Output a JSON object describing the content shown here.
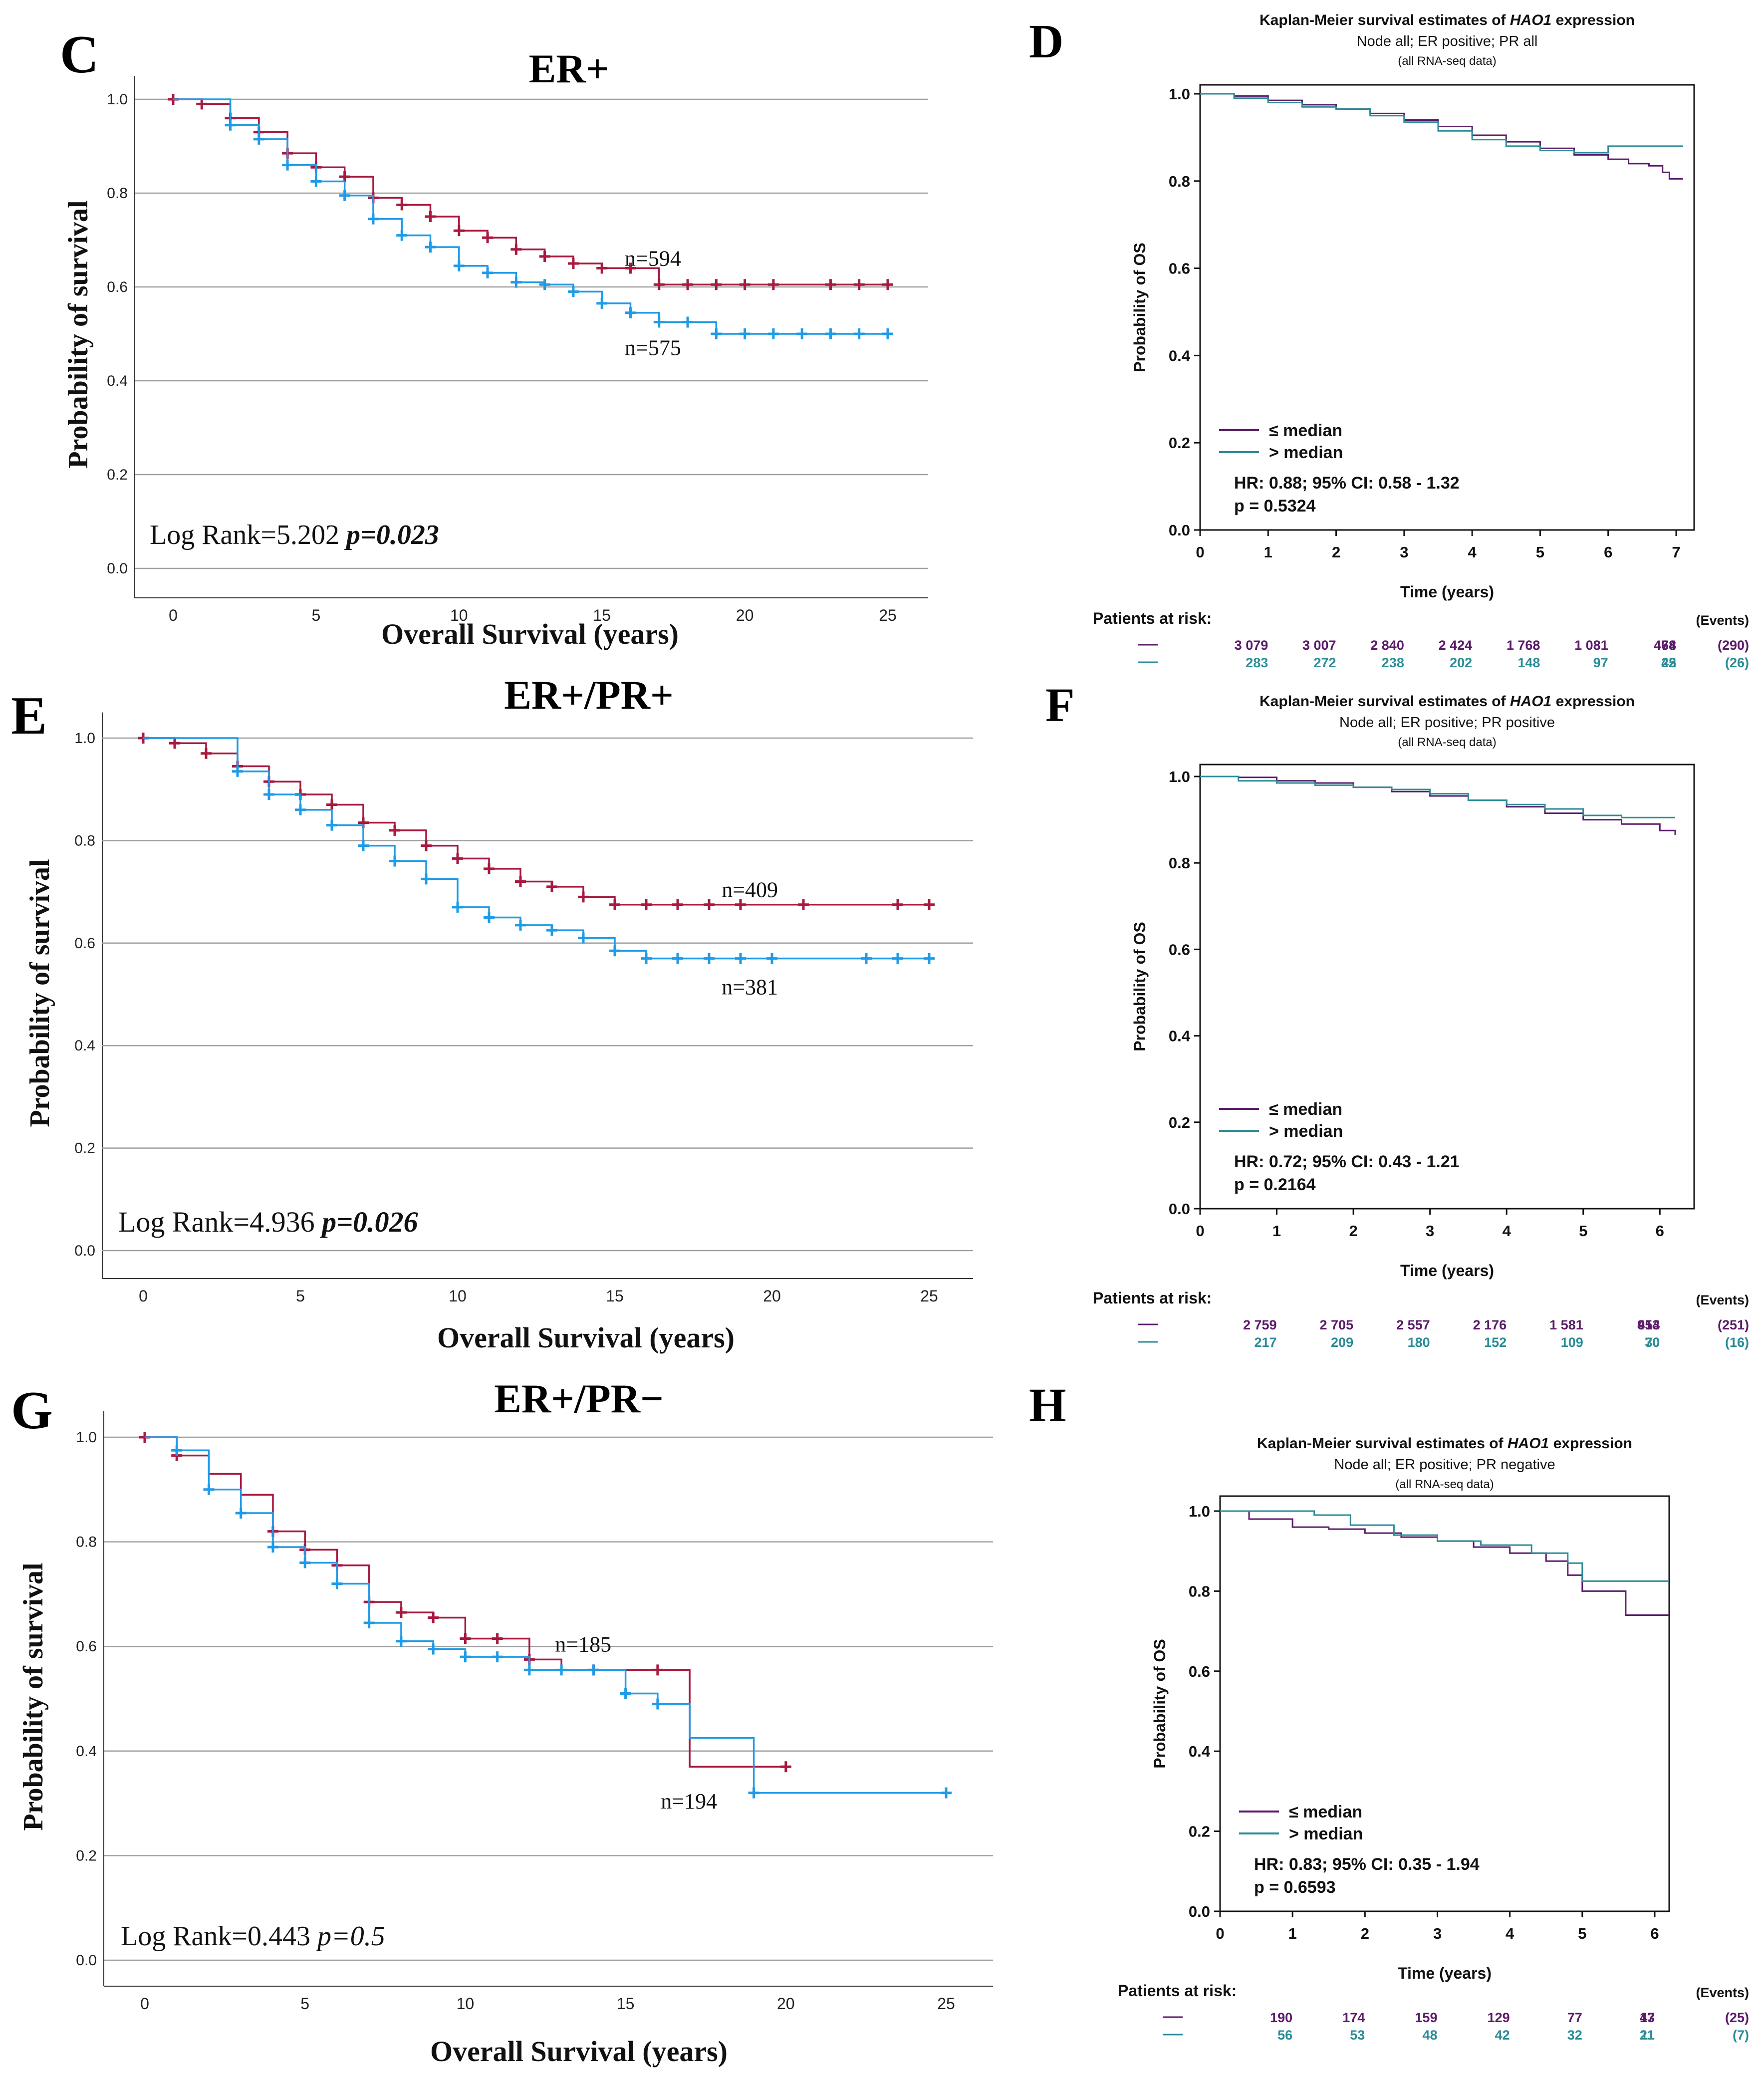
{
  "figure_title": "",
  "panels_text": {
    "C": {
      "letter": "C",
      "title": "ER+",
      "xlabel": "Overall Survival (years)",
      "ylabel": "Probability of survival",
      "logrank": "Log Rank=5.202 ",
      "pval": "p=0.023",
      "n_red": "n=594",
      "n_blue": "n=575"
    },
    "E": {
      "letter": "E",
      "title": "ER+/PR+",
      "xlabel": "Overall Survival (years)",
      "ylabel": "Probability of survival",
      "logrank": "Log Rank=4.936 ",
      "pval": "p=0.026",
      "n_red": "n=409",
      "n_blue": "n=381"
    },
    "G": {
      "letter": "G",
      "title": "ER+/PR−",
      "xlabel": "Overall Survival (years)",
      "ylabel": "Probability of survival",
      "logrank": "Log Rank=0.443 ",
      "pval": "p=0.5",
      "n_red": "n=185",
      "n_blue": "n=194"
    },
    "D": {
      "letter": "D",
      "title_pre": "Kaplan-Meier survival estimates of ",
      "title_gene": "HAO1",
      "title_post": " expression",
      "subtitle": "Node all; ER positive; PR all",
      "subtitle2": "(all RNA-seq data)",
      "xlabel": "Time (years)",
      "ylabel": "Probability of OS",
      "legend_low": "≤ median",
      "legend_high": "> median",
      "hr": "HR: 0.88; 95% CI: 0.58 - 1.32",
      "p": "p = 0.5324",
      "risk_label": "Patients at risk:",
      "events_label": "(Events)",
      "risk_low": [
        "3 079",
        "3 007",
        "2 840",
        "2 424",
        "1 768",
        "1 081",
        "474",
        "68",
        "(290)"
      ],
      "risk_high": [
        "283",
        "272",
        "238",
        "202",
        "148",
        "97",
        "45",
        "22",
        "(26)"
      ]
    },
    "F": {
      "letter": "F",
      "title_pre": "Kaplan-Meier survival estimates of ",
      "title_gene": "HAO1",
      "title_post": " expression",
      "subtitle": "Node all; ER positive; PR positive",
      "subtitle2": "(all RNA-seq data)",
      "xlabel": "Time (years)",
      "ylabel": "Probability of OS",
      "legend_low": "≤ median",
      "legend_high": "> median",
      "hr": "HR: 0.72; 95% CI: 0.43 - 1.21",
      "p": "p = 0.2164",
      "risk_label": "Patients at risk:",
      "events_label": "(Events)",
      "risk_low": [
        "2 759",
        "2 705",
        "2 557",
        "2 176",
        "1 581",
        "954",
        "413",
        "(251)"
      ],
      "risk_high": [
        "217",
        "209",
        "180",
        "152",
        "109",
        "70",
        "30",
        "(16)"
      ]
    },
    "H": {
      "letter": "H",
      "title_pre": "Kaplan-Meier survival estimates of ",
      "title_gene": "HAO1",
      "title_post": " expression",
      "subtitle": "Node all; ER positive; PR negative",
      "subtitle2": "(all RNA-seq data)",
      "xlabel": "Time (years)",
      "ylabel": "Probability of OS",
      "legend_low": "≤ median",
      "legend_high": "> median",
      "hr": "HR: 0.83; 95% CI: 0.35 - 1.94",
      "p": "p = 0.6593",
      "risk_label": "Patients at risk:",
      "events_label": "(Events)",
      "risk_low": [
        "190",
        "174",
        "159",
        "129",
        "77",
        "43",
        "17",
        "(25)"
      ],
      "risk_high": [
        "56",
        "53",
        "48",
        "42",
        "32",
        "21",
        "11",
        "(7)"
      ]
    }
  },
  "colors": {
    "red": "#A8183F",
    "blue": "#1E9BE8",
    "purple": "#5C1A6B",
    "teal": "#2A8C97",
    "grid": "#A0A0A0"
  },
  "chart_data": [
    {
      "id": "C",
      "type": "line",
      "title": "ER+",
      "xlabel": "Overall Survival (years)",
      "ylabel": "Probability of survival",
      "xlim": [
        0,
        25
      ],
      "ylim": [
        0,
        1
      ],
      "xticks": [
        0,
        5,
        10,
        15,
        20,
        25
      ],
      "yticks": [
        0,
        0.2,
        0.4,
        0.6,
        0.8,
        1.0
      ],
      "series": [
        {
          "name": "n=594",
          "color": "red",
          "x": [
            0,
            1,
            2,
            3,
            4,
            5,
            6,
            7,
            8,
            9,
            10,
            11,
            12,
            13,
            14,
            15,
            16,
            17,
            25
          ],
          "y": [
            1.0,
            0.99,
            0.96,
            0.93,
            0.885,
            0.855,
            0.835,
            0.79,
            0.775,
            0.75,
            0.72,
            0.705,
            0.68,
            0.665,
            0.65,
            0.64,
            0.64,
            0.605,
            0.605
          ],
          "censor": [
            0,
            1,
            2,
            3,
            4,
            5,
            6,
            7,
            8,
            9,
            10,
            11,
            12,
            13,
            14,
            15,
            16,
            17,
            18,
            19,
            20,
            21,
            23,
            24,
            25
          ]
        },
        {
          "name": "n=575",
          "color": "blue",
          "x": [
            0,
            2,
            3,
            4,
            5,
            6,
            7,
            8,
            9,
            10,
            11,
            12,
            13,
            14,
            15,
            16,
            17,
            19,
            25
          ],
          "y": [
            1.0,
            0.945,
            0.915,
            0.86,
            0.825,
            0.795,
            0.745,
            0.71,
            0.685,
            0.645,
            0.63,
            0.61,
            0.605,
            0.59,
            0.565,
            0.545,
            0.525,
            0.5,
            0.5
          ],
          "censor": [
            2,
            3,
            4,
            5,
            6,
            7,
            8,
            9,
            10,
            11,
            12,
            13,
            14,
            15,
            16,
            17,
            18,
            19,
            20,
            21,
            22,
            23,
            24,
            25
          ]
        }
      ]
    },
    {
      "id": "E",
      "type": "line",
      "title": "ER+/PR+",
      "xlabel": "Overall Survival (years)",
      "ylabel": "Probability of survival",
      "xlim": [
        0,
        25
      ],
      "ylim": [
        0,
        1
      ],
      "xticks": [
        0,
        5,
        10,
        15,
        20,
        25
      ],
      "yticks": [
        0,
        0.2,
        0.4,
        0.6,
        0.8,
        1.0
      ],
      "series": [
        {
          "name": "n=409",
          "color": "red",
          "x": [
            0,
            1,
            2,
            3,
            4,
            5,
            6,
            7,
            8,
            9,
            10,
            11,
            12,
            13,
            14,
            15,
            25
          ],
          "y": [
            1.0,
            0.99,
            0.97,
            0.945,
            0.915,
            0.89,
            0.87,
            0.835,
            0.82,
            0.79,
            0.765,
            0.745,
            0.72,
            0.71,
            0.69,
            0.675,
            0.675
          ],
          "censor": [
            0,
            1,
            2,
            3,
            4,
            5,
            6,
            7,
            8,
            9,
            10,
            11,
            12,
            13,
            14,
            15,
            16,
            17,
            18,
            19,
            21,
            24,
            25
          ]
        },
        {
          "name": "n=381",
          "color": "blue",
          "x": [
            0,
            3,
            4,
            5,
            6,
            7,
            8,
            9,
            10,
            11,
            12,
            13,
            14,
            15,
            16,
            25
          ],
          "y": [
            1.0,
            0.935,
            0.89,
            0.86,
            0.83,
            0.79,
            0.76,
            0.725,
            0.67,
            0.65,
            0.635,
            0.625,
            0.61,
            0.585,
            0.57,
            0.57
          ],
          "censor": [
            3,
            4,
            5,
            6,
            7,
            8,
            9,
            10,
            11,
            12,
            13,
            14,
            15,
            16,
            17,
            18,
            19,
            20,
            23,
            24,
            25
          ]
        }
      ]
    },
    {
      "id": "G",
      "type": "line",
      "title": "ER+/PR−",
      "xlabel": "Overall Survival (years)",
      "ylabel": "Probability of survival",
      "xlim": [
        0,
        25
      ],
      "ylim": [
        0,
        1
      ],
      "xticks": [
        0,
        5,
        10,
        15,
        20,
        25
      ],
      "yticks": [
        0,
        0.2,
        0.4,
        0.6,
        0.8,
        1.0
      ],
      "series": [
        {
          "name": "n=185",
          "color": "red",
          "x": [
            0,
            1,
            2,
            3,
            4,
            5,
            6,
            7,
            8,
            9,
            10,
            12,
            13,
            17,
            20
          ],
          "y": [
            1.0,
            0.965,
            0.93,
            0.89,
            0.82,
            0.785,
            0.755,
            0.685,
            0.665,
            0.655,
            0.615,
            0.575,
            0.555,
            0.37,
            0.37
          ],
          "censor": [
            0,
            1,
            4,
            5,
            6,
            7,
            8,
            9,
            10,
            11,
            12,
            14,
            16,
            20
          ]
        },
        {
          "name": "n=194",
          "color": "blue",
          "x": [
            0,
            1,
            2,
            3,
            4,
            5,
            6,
            7,
            8,
            9,
            10,
            12,
            15,
            16,
            17,
            19,
            25
          ],
          "y": [
            1.0,
            0.975,
            0.9,
            0.855,
            0.79,
            0.76,
            0.72,
            0.645,
            0.61,
            0.595,
            0.58,
            0.555,
            0.51,
            0.49,
            0.425,
            0.32,
            0.32
          ],
          "censor": [
            1,
            2,
            3,
            4,
            5,
            6,
            7,
            8,
            9,
            10,
            11,
            12,
            13,
            14,
            15,
            16,
            19,
            25
          ]
        }
      ]
    },
    {
      "id": "D",
      "type": "line",
      "title": "Kaplan-Meier survival estimates of HAO1 expression",
      "xlabel": "Time (years)",
      "ylabel": "Probability of OS",
      "xlim": [
        0,
        7
      ],
      "ylim": [
        0,
        1
      ],
      "xticks": [
        0,
        1,
        2,
        3,
        4,
        5,
        6,
        7
      ],
      "yticks": [
        0,
        0.2,
        0.4,
        0.6,
        0.8,
        1.0
      ],
      "series": [
        {
          "name": "≤ median",
          "color": "purple",
          "x": [
            0,
            0.5,
            1,
            1.5,
            2,
            2.5,
            3,
            3.5,
            4,
            4.5,
            5,
            5.5,
            6,
            6.3,
            6.6,
            6.8,
            6.9,
            7.1
          ],
          "y": [
            1.0,
            0.995,
            0.985,
            0.975,
            0.965,
            0.955,
            0.94,
            0.925,
            0.905,
            0.89,
            0.875,
            0.86,
            0.85,
            0.84,
            0.835,
            0.82,
            0.805,
            0.805
          ]
        },
        {
          "name": "> median",
          "color": "teal",
          "x": [
            0,
            0.5,
            1,
            1.5,
            2,
            2.5,
            3,
            3.5,
            4,
            4.5,
            5,
            5.5,
            6,
            6.5,
            7.1
          ],
          "y": [
            1.0,
            0.99,
            0.98,
            0.97,
            0.965,
            0.95,
            0.935,
            0.915,
            0.895,
            0.88,
            0.87,
            0.865,
            0.88,
            0.88,
            0.88
          ]
        }
      ],
      "hr": "HR: 0.88; 95% CI: 0.58 - 1.32",
      "p": "p = 0.5324"
    },
    {
      "id": "F",
      "type": "line",
      "title": "Kaplan-Meier survival estimates of HAO1 expression",
      "xlabel": "Time (years)",
      "ylabel": "Probability of OS",
      "xlim": [
        0,
        6.2
      ],
      "ylim": [
        0,
        1
      ],
      "xticks": [
        0,
        1,
        2,
        3,
        4,
        5,
        6
      ],
      "yticks": [
        0,
        0.2,
        0.4,
        0.6,
        0.8,
        1.0
      ],
      "series": [
        {
          "name": "≤ median",
          "color": "purple",
          "x": [
            0,
            0.5,
            1,
            1.5,
            2,
            2.5,
            3,
            3.5,
            4,
            4.5,
            5,
            5.5,
            6,
            6.2
          ],
          "y": [
            1.0,
            0.998,
            0.99,
            0.985,
            0.975,
            0.965,
            0.955,
            0.945,
            0.93,
            0.915,
            0.9,
            0.89,
            0.875,
            0.865
          ]
        },
        {
          "name": "> median",
          "color": "teal",
          "x": [
            0,
            0.5,
            1,
            1.5,
            2,
            2.5,
            3,
            3.5,
            4,
            4.5,
            5,
            5.5,
            6.2
          ],
          "y": [
            1.0,
            0.99,
            0.985,
            0.98,
            0.975,
            0.97,
            0.96,
            0.945,
            0.935,
            0.925,
            0.91,
            0.905,
            0.905
          ]
        }
      ],
      "hr": "HR: 0.72; 95% CI: 0.43 - 1.21",
      "p": "p = 0.2164"
    },
    {
      "id": "H",
      "type": "line",
      "title": "Kaplan-Meier survival estimates of HAO1 expression",
      "xlabel": "Time (years)",
      "ylabel": "Probability of OS",
      "xlim": [
        0,
        6.2
      ],
      "ylim": [
        0,
        1
      ],
      "xticks": [
        0,
        1,
        2,
        3,
        4,
        5,
        6
      ],
      "yticks": [
        0,
        0.2,
        0.4,
        0.6,
        0.8,
        1.0
      ],
      "series": [
        {
          "name": "≤ median",
          "color": "purple",
          "x": [
            0,
            0.4,
            1,
            1.5,
            2,
            2.5,
            3,
            3.5,
            4,
            4.5,
            4.8,
            5,
            5.6,
            6.2
          ],
          "y": [
            1.0,
            0.98,
            0.96,
            0.955,
            0.945,
            0.935,
            0.925,
            0.91,
            0.895,
            0.875,
            0.84,
            0.8,
            0.74,
            0.74
          ]
        },
        {
          "name": "> median",
          "color": "teal",
          "x": [
            0,
            1.3,
            1.8,
            2.4,
            3,
            3.6,
            4.3,
            4.8,
            5,
            6.2
          ],
          "y": [
            1.0,
            0.99,
            0.965,
            0.94,
            0.925,
            0.915,
            0.895,
            0.87,
            0.825,
            0.825
          ]
        }
      ],
      "hr": "HR: 0.83; 95% CI: 0.35 - 1.94",
      "p": "p = 0.6593"
    }
  ]
}
